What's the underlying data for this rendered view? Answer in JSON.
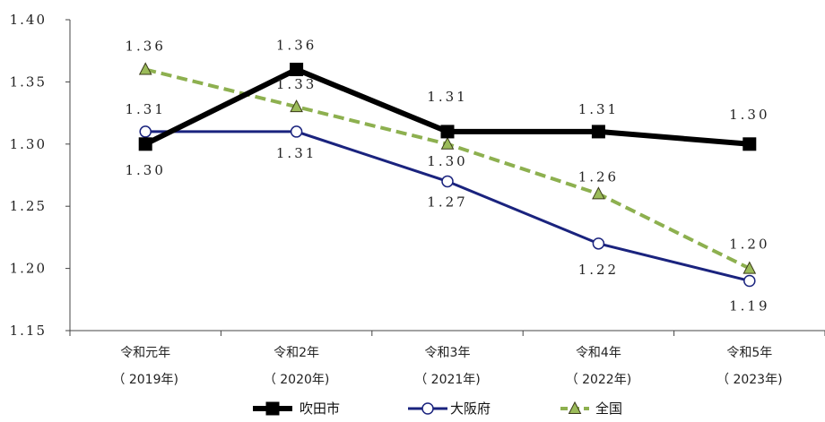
{
  "chart_data": {
    "type": "line",
    "categories": [
      {
        "line1": "令和元年",
        "line2": "（ 2019年)"
      },
      {
        "line1": "令和2年",
        "line2": "（ 2020年)"
      },
      {
        "line1": "令和3年",
        "line2": "（ 2021年)"
      },
      {
        "line1": "令和4年",
        "line2": "（ 2022年)"
      },
      {
        "line1": "令和5年",
        "line2": "（ 2023年)"
      }
    ],
    "ylim": [
      1.15,
      1.4
    ],
    "yticks": [
      "1.15",
      "1.20",
      "1.25",
      "1.30",
      "1.35",
      "1.40"
    ],
    "grid": false,
    "legend_position": "bottom",
    "series": [
      {
        "name": "吹田市",
        "color": "#000000",
        "marker": "square",
        "style": "solid",
        "values": [
          1.3,
          1.36,
          1.31,
          1.31,
          1.3
        ],
        "labels": [
          "1.30",
          "1.36",
          "1.31",
          "1.31",
          "1.30"
        ]
      },
      {
        "name": "大阪府",
        "color": "#1a237e",
        "marker": "circle",
        "style": "solid",
        "values": [
          1.31,
          1.31,
          1.27,
          1.22,
          1.19
        ],
        "labels": [
          "1.31",
          "1.31",
          "1.27",
          "1.22",
          "1.19"
        ]
      },
      {
        "name": "全国",
        "color": "#8db04f",
        "marker": "triangle",
        "style": "dashed",
        "values": [
          1.36,
          1.33,
          1.3,
          1.26,
          1.2
        ],
        "labels": [
          "1.36",
          "1.33",
          "1.30",
          "1.26",
          "1.20"
        ]
      }
    ]
  }
}
